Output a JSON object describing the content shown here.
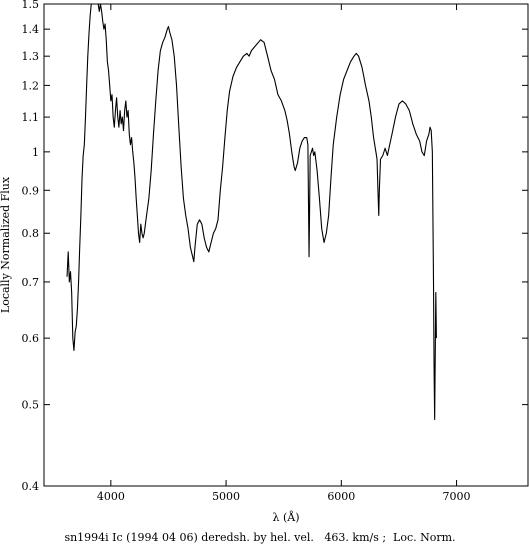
{
  "chart_data": {
    "type": "line",
    "title": "",
    "caption": "sn1994i Ic (1994 04 06) deredsh. by hel. vel.   463. km/s ;  Loc. Norm.",
    "xlabel": "λ (Å)",
    "ylabel": "Locally Normalized Flux",
    "y_scale": "log",
    "xlim": [
      3420,
      7620
    ],
    "ylim": [
      0.4,
      1.5
    ],
    "grid": false,
    "x_ticks": [
      4000,
      5000,
      6000,
      7000
    ],
    "y_ticks": [
      0.4,
      0.5,
      0.6,
      0.7,
      0.8,
      0.9,
      1,
      1.1,
      1.2,
      1.3,
      1.4,
      1.5
    ],
    "series": [
      {
        "name": "",
        "points": [
          [
            3620,
            0.71
          ],
          [
            3630,
            0.76
          ],
          [
            3640,
            0.7
          ],
          [
            3650,
            0.72
          ],
          [
            3660,
            0.68
          ],
          [
            3670,
            0.6
          ],
          [
            3680,
            0.58
          ],
          [
            3690,
            0.61
          ],
          [
            3700,
            0.62
          ],
          [
            3710,
            0.65
          ],
          [
            3720,
            0.7
          ],
          [
            3730,
            0.77
          ],
          [
            3740,
            0.84
          ],
          [
            3750,
            0.93
          ],
          [
            3760,
            0.99
          ],
          [
            3770,
            1.02
          ],
          [
            3780,
            1.1
          ],
          [
            3790,
            1.2
          ],
          [
            3800,
            1.3
          ],
          [
            3810,
            1.38
          ],
          [
            3820,
            1.45
          ],
          [
            3830,
            1.5
          ],
          [
            3840,
            1.53
          ],
          [
            3850,
            1.52
          ],
          [
            3860,
            1.5
          ],
          [
            3870,
            1.55
          ],
          [
            3880,
            1.6
          ],
          [
            3890,
            1.5
          ],
          [
            3900,
            1.47
          ],
          [
            3910,
            1.5
          ],
          [
            3920,
            1.47
          ],
          [
            3930,
            1.43
          ],
          [
            3940,
            1.4
          ],
          [
            3950,
            1.42
          ],
          [
            3960,
            1.36
          ],
          [
            3970,
            1.28
          ],
          [
            3980,
            1.25
          ],
          [
            3990,
            1.2
          ],
          [
            4000,
            1.15
          ],
          [
            4010,
            1.17
          ],
          [
            4020,
            1.1
          ],
          [
            4030,
            1.07
          ],
          [
            4040,
            1.12
          ],
          [
            4050,
            1.16
          ],
          [
            4060,
            1.1
          ],
          [
            4070,
            1.07
          ],
          [
            4080,
            1.12
          ],
          [
            4090,
            1.08
          ],
          [
            4100,
            1.1
          ],
          [
            4110,
            1.06
          ],
          [
            4120,
            1.12
          ],
          [
            4130,
            1.15
          ],
          [
            4140,
            1.1
          ],
          [
            4150,
            1.12
          ],
          [
            4160,
            1.05
          ],
          [
            4170,
            1.02
          ],
          [
            4180,
            1.04
          ],
          [
            4190,
            1.0
          ],
          [
            4200,
            0.97
          ],
          [
            4210,
            0.93
          ],
          [
            4220,
            0.88
          ],
          [
            4230,
            0.84
          ],
          [
            4240,
            0.8
          ],
          [
            4250,
            0.78
          ],
          [
            4260,
            0.82
          ],
          [
            4270,
            0.8
          ],
          [
            4280,
            0.79
          ],
          [
            4290,
            0.8
          ],
          [
            4300,
            0.82
          ],
          [
            4310,
            0.84
          ],
          [
            4330,
            0.88
          ],
          [
            4350,
            0.95
          ],
          [
            4370,
            1.05
          ],
          [
            4390,
            1.15
          ],
          [
            4410,
            1.25
          ],
          [
            4430,
            1.32
          ],
          [
            4450,
            1.35
          ],
          [
            4470,
            1.37
          ],
          [
            4490,
            1.4
          ],
          [
            4500,
            1.41
          ],
          [
            4510,
            1.39
          ],
          [
            4530,
            1.36
          ],
          [
            4550,
            1.3
          ],
          [
            4570,
            1.2
          ],
          [
            4590,
            1.07
          ],
          [
            4610,
            0.96
          ],
          [
            4630,
            0.88
          ],
          [
            4650,
            0.84
          ],
          [
            4670,
            0.81
          ],
          [
            4690,
            0.77
          ],
          [
            4710,
            0.75
          ],
          [
            4720,
            0.74
          ],
          [
            4730,
            0.77
          ],
          [
            4750,
            0.82
          ],
          [
            4770,
            0.83
          ],
          [
            4790,
            0.82
          ],
          [
            4810,
            0.79
          ],
          [
            4830,
            0.77
          ],
          [
            4850,
            0.76
          ],
          [
            4870,
            0.78
          ],
          [
            4890,
            0.8
          ],
          [
            4910,
            0.81
          ],
          [
            4930,
            0.83
          ],
          [
            4950,
            0.9
          ],
          [
            4970,
            0.96
          ],
          [
            4990,
            1.04
          ],
          [
            5010,
            1.12
          ],
          [
            5030,
            1.18
          ],
          [
            5060,
            1.23
          ],
          [
            5090,
            1.26
          ],
          [
            5120,
            1.28
          ],
          [
            5150,
            1.3
          ],
          [
            5180,
            1.31
          ],
          [
            5200,
            1.3
          ],
          [
            5220,
            1.32
          ],
          [
            5240,
            1.33
          ],
          [
            5260,
            1.34
          ],
          [
            5280,
            1.35
          ],
          [
            5300,
            1.36
          ],
          [
            5330,
            1.35
          ],
          [
            5360,
            1.3
          ],
          [
            5390,
            1.25
          ],
          [
            5420,
            1.22
          ],
          [
            5450,
            1.17
          ],
          [
            5480,
            1.15
          ],
          [
            5510,
            1.12
          ],
          [
            5530,
            1.09
          ],
          [
            5550,
            1.05
          ],
          [
            5570,
            1.0
          ],
          [
            5590,
            0.96
          ],
          [
            5600,
            0.95
          ],
          [
            5620,
            0.97
          ],
          [
            5640,
            1.01
          ],
          [
            5660,
            1.03
          ],
          [
            5680,
            1.04
          ],
          [
            5700,
            1.04
          ],
          [
            5710,
            1.02
          ],
          [
            5720,
            0.75
          ],
          [
            5730,
            0.99
          ],
          [
            5740,
            1.0
          ],
          [
            5750,
            1.01
          ],
          [
            5760,
            0.99
          ],
          [
            5770,
            1.0
          ],
          [
            5790,
            0.95
          ],
          [
            5810,
            0.88
          ],
          [
            5830,
            0.81
          ],
          [
            5850,
            0.78
          ],
          [
            5870,
            0.8
          ],
          [
            5890,
            0.84
          ],
          [
            5910,
            0.93
          ],
          [
            5930,
            1.02
          ],
          [
            5960,
            1.1
          ],
          [
            5990,
            1.17
          ],
          [
            6020,
            1.22
          ],
          [
            6050,
            1.25
          ],
          [
            6080,
            1.28
          ],
          [
            6110,
            1.3
          ],
          [
            6130,
            1.31
          ],
          [
            6150,
            1.3
          ],
          [
            6180,
            1.26
          ],
          [
            6210,
            1.2
          ],
          [
            6240,
            1.15
          ],
          [
            6260,
            1.1
          ],
          [
            6280,
            1.04
          ],
          [
            6300,
            1.0
          ],
          [
            6310,
            0.98
          ],
          [
            6320,
            0.88
          ],
          [
            6325,
            0.84
          ],
          [
            6330,
            0.9
          ],
          [
            6340,
            0.98
          ],
          [
            6360,
            0.99
          ],
          [
            6380,
            1.01
          ],
          [
            6400,
            0.99
          ],
          [
            6420,
            1.02
          ],
          [
            6440,
            1.05
          ],
          [
            6470,
            1.1
          ],
          [
            6500,
            1.14
          ],
          [
            6530,
            1.15
          ],
          [
            6560,
            1.14
          ],
          [
            6590,
            1.12
          ],
          [
            6620,
            1.08
          ],
          [
            6650,
            1.05
          ],
          [
            6680,
            1.03
          ],
          [
            6700,
            1.0
          ],
          [
            6720,
            0.99
          ],
          [
            6740,
            1.03
          ],
          [
            6760,
            1.05
          ],
          [
            6770,
            1.07
          ],
          [
            6780,
            1.06
          ],
          [
            6790,
            1.0
          ],
          [
            6800,
            0.7
          ],
          [
            6805,
            0.55
          ],
          [
            6810,
            0.48
          ],
          [
            6815,
            0.57
          ],
          [
            6820,
            0.68
          ],
          [
            6825,
            0.6
          ]
        ]
      }
    ]
  }
}
